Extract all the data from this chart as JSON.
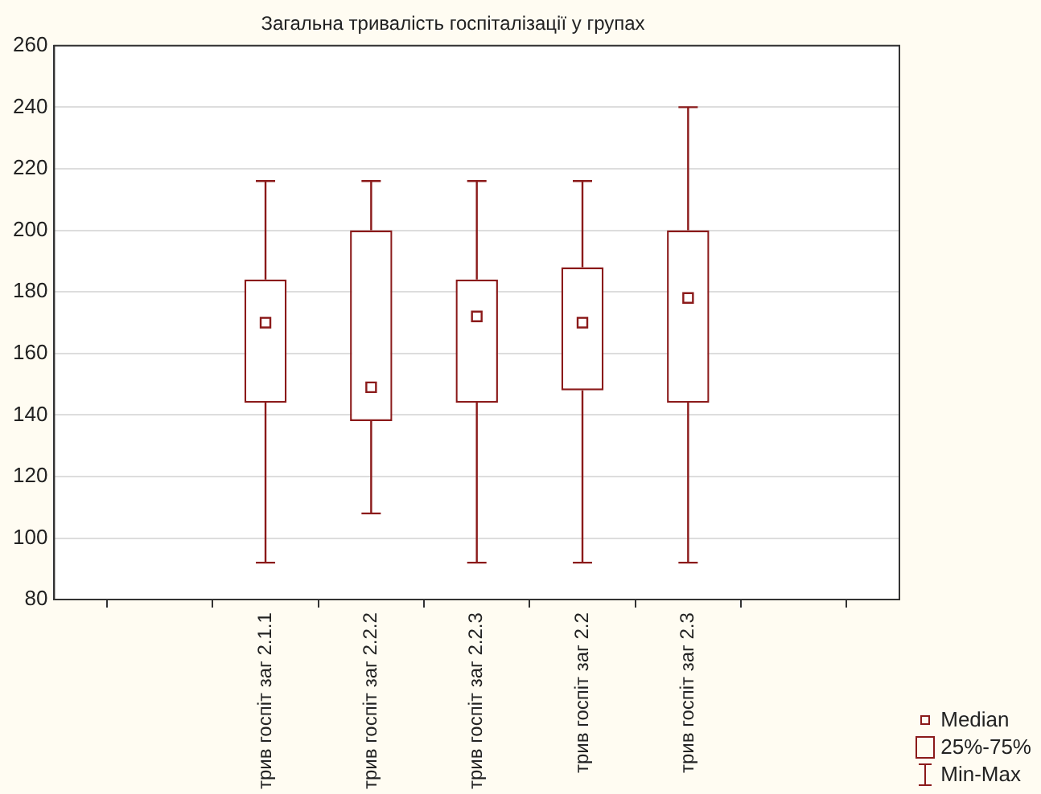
{
  "chart_data": {
    "type": "box",
    "title": "Загальна тривалість госпіталізації у групах",
    "categories": [
      null,
      null,
      "трив госпіт заг 2.1.1",
      "трив госпіт заг 2.2.2",
      "трив госпіт заг 2.2.3",
      "трив госпіт заг 2.2",
      "трив госпіт заг 2.3",
      null,
      null
    ],
    "boxes": [
      null,
      null,
      {
        "low": 92,
        "q1": 144,
        "median": 170,
        "q3": 184,
        "high": 216
      },
      {
        "low": 108,
        "q1": 138,
        "median": 149,
        "q3": 200,
        "high": 216
      },
      {
        "low": 92,
        "q1": 144,
        "median": 172,
        "q3": 184,
        "high": 216
      },
      {
        "low": 92,
        "q1": 148,
        "median": 170,
        "q3": 188,
        "high": 216
      },
      {
        "low": 92,
        "q1": 144,
        "median": 178,
        "q3": 200,
        "high": 240
      },
      null,
      null
    ],
    "color": "#8b1a1a",
    "ylim": [
      80,
      260
    ],
    "yticks": [
      80,
      100,
      120,
      140,
      160,
      180,
      200,
      220,
      240,
      260
    ],
    "grid": "y",
    "annotations": [
      "Median",
      "25%-75%",
      "Min-Max"
    ]
  }
}
